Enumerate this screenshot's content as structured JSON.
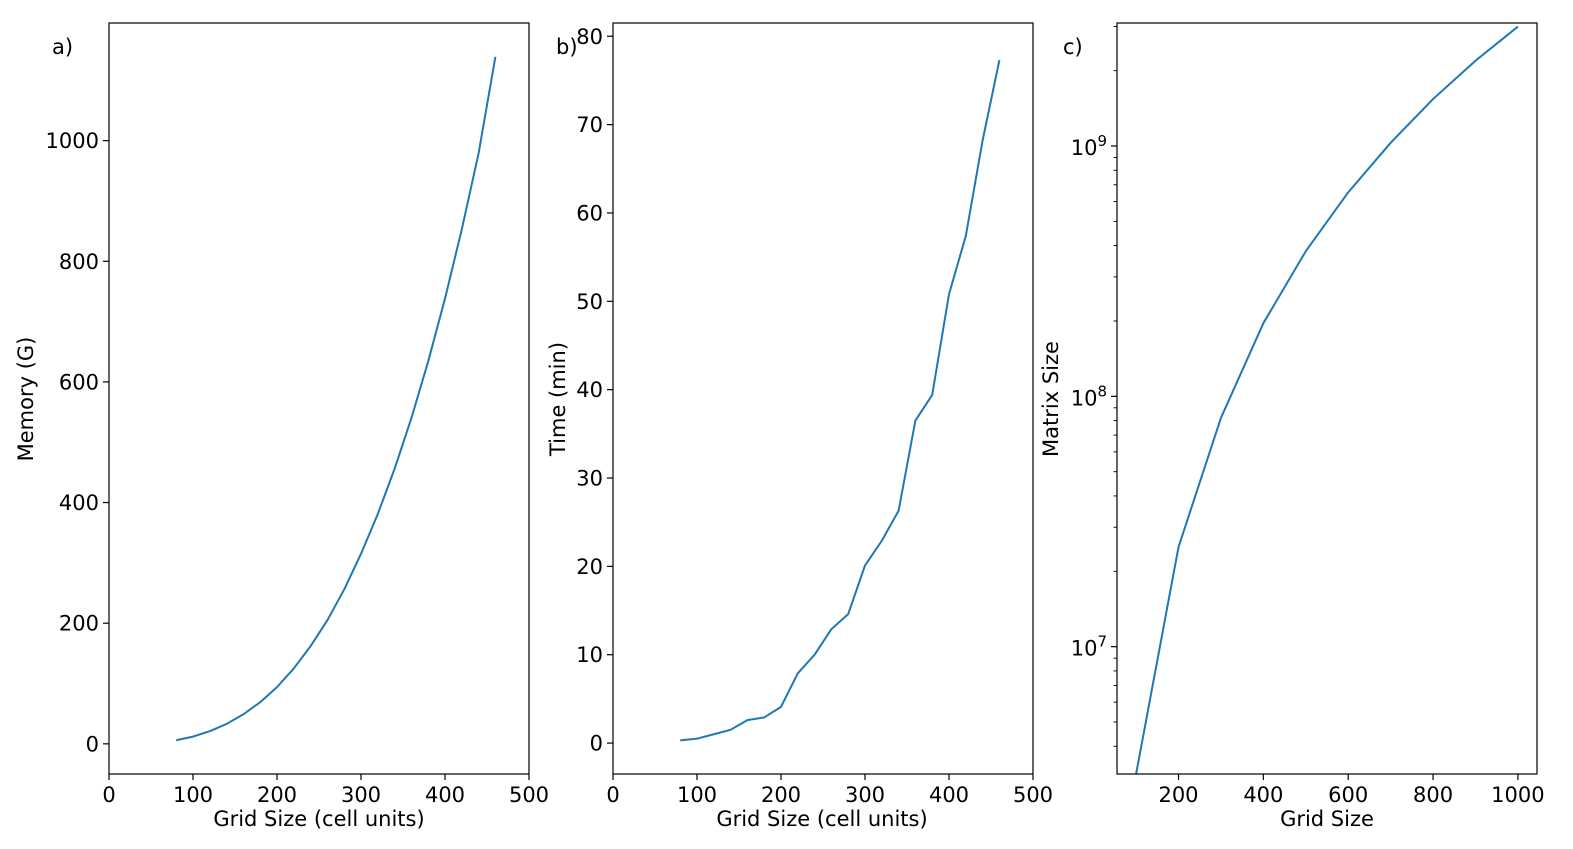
{
  "colors": {
    "line": "#1f77b4",
    "axes": "#000000",
    "background": "#ffffff"
  },
  "chart_data": [
    {
      "type": "line",
      "panel_label": "a)",
      "xlabel": "Grid Size (cell units)",
      "ylabel": "Memory (G)",
      "xlim": [
        0,
        500
      ],
      "ylim": [
        -50,
        1195
      ],
      "yscale": "linear",
      "x_ticks": [
        0,
        100,
        200,
        300,
        400,
        500
      ],
      "y_ticks": [
        0,
        200,
        400,
        600,
        800,
        1000
      ],
      "x_tick_labels": [
        "0",
        "100",
        "200",
        "300",
        "400",
        "500"
      ],
      "y_tick_labels": [
        "0",
        "200",
        "400",
        "600",
        "800",
        "1000"
      ],
      "grid": false,
      "series": [
        {
          "x": [
            80,
            100,
            120,
            140,
            160,
            180,
            200,
            220,
            240,
            260,
            280,
            300,
            320,
            340,
            360,
            380,
            400,
            420,
            440,
            460
          ],
          "values": [
            6,
            12,
            21,
            33,
            49,
            69,
            94,
            125,
            162,
            205,
            256,
            315,
            381,
            456,
            540,
            634,
            738,
            853,
            979,
            1139
          ]
        }
      ]
    },
    {
      "type": "line",
      "panel_label": "b)",
      "xlabel": "Grid Size (cell units)",
      "ylabel": "Time (min)",
      "xlim": [
        0,
        500
      ],
      "ylim": [
        -3.5,
        81.5
      ],
      "yscale": "linear",
      "x_ticks": [
        0,
        100,
        200,
        300,
        400,
        500
      ],
      "y_ticks": [
        0,
        10,
        20,
        30,
        40,
        50,
        60,
        70,
        80
      ],
      "x_tick_labels": [
        "0",
        "100",
        "200",
        "300",
        "400",
        "500"
      ],
      "y_tick_labels": [
        "0",
        "10",
        "20",
        "30",
        "40",
        "50",
        "60",
        "70",
        "80"
      ],
      "grid": false,
      "series": [
        {
          "x": [
            80,
            100,
            120,
            140,
            160,
            180,
            200,
            220,
            240,
            260,
            280,
            300,
            320,
            340,
            360,
            380,
            400,
            420,
            440,
            460
          ],
          "values": [
            0.3,
            0.5,
            1.0,
            1.5,
            2.6,
            2.9,
            4.1,
            7.9,
            10.0,
            12.9,
            14.6,
            20.1,
            22.9,
            26.3,
            36.5,
            39.4,
            50.8,
            57.4,
            68.2,
            77.3
          ]
        }
      ]
    },
    {
      "type": "line",
      "panel_label": "c)",
      "xlabel": "Grid Size",
      "ylabel": "Matrix Size",
      "xlim": [
        55,
        1045
      ],
      "ylim": [
        3100000,
        3100000000
      ],
      "yscale": "log",
      "x_ticks": [
        200,
        400,
        600,
        800,
        1000
      ],
      "x_tick_labels": [
        "200",
        "400",
        "600",
        "800",
        "1000"
      ],
      "y_ticks": [
        10000000,
        100000000,
        1000000000
      ],
      "y_tick_labels": [
        {
          "base": "10",
          "exp": "7"
        },
        {
          "base": "10",
          "exp": "8"
        },
        {
          "base": "10",
          "exp": "9"
        }
      ],
      "grid": false,
      "series": [
        {
          "x": [
            100,
            200,
            300,
            400,
            500,
            600,
            700,
            800,
            900,
            1000
          ],
          "values": [
            3100000,
            25000000,
            82000000,
            196000000,
            380000000,
            653000000,
            1030000000,
            1540000000,
            2190000000,
            3000000000
          ]
        }
      ]
    }
  ]
}
